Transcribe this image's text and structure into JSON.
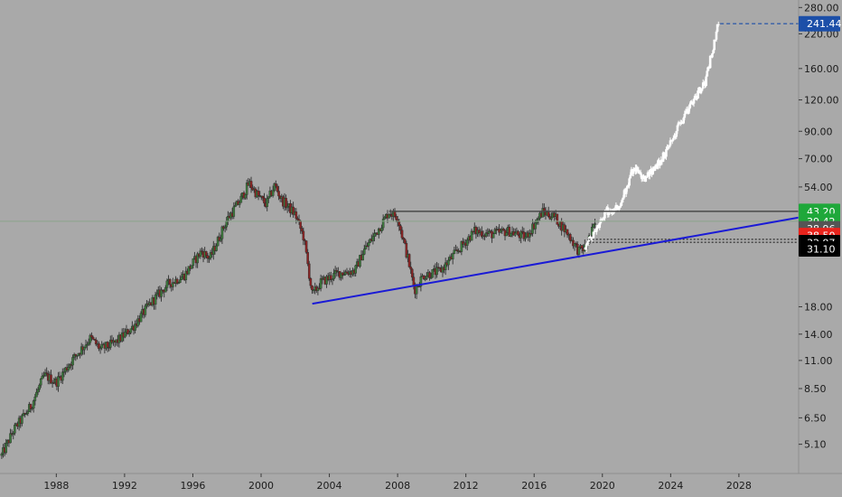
{
  "chart_data": {
    "type": "candlestick",
    "scale": "log",
    "colors": {
      "background": "#a9a9a9",
      "up": "#3d7a3d",
      "down": "#8b2424",
      "wick": "#3b3b3b",
      "projection": "#ffffff",
      "trendline": "#1a1ad6",
      "resistance": "#4a4a4a",
      "price_line": "#8ca58c"
    },
    "x_tick_labels": [
      "1988",
      "1992",
      "1996",
      "2000",
      "2004",
      "2008",
      "2012",
      "2016",
      "2020",
      "2024",
      "2028"
    ],
    "x_ticks": [
      1988,
      1992,
      1996,
      2000,
      2004,
      2008,
      2012,
      2016,
      2020,
      2024,
      2028
    ],
    "xlim": [
      1984.7,
      2031.5
    ],
    "y_tick_labels": [
      "280.00",
      "220.00",
      "160.00",
      "120.00",
      "90.00",
      "70.00",
      "54.00",
      "18.00",
      "14.00",
      "11.00",
      "8.50",
      "6.50",
      "5.10"
    ],
    "y_ticks": [
      280,
      220,
      160,
      120,
      90,
      70,
      54,
      18,
      14,
      11,
      8.5,
      6.5,
      5.1
    ],
    "ylim": [
      3.9,
      300
    ],
    "price_anchors": [
      [
        1984.8,
        4.6
      ],
      [
        1985.5,
        5.8
      ],
      [
        1986.5,
        7.2
      ],
      [
        1987.3,
        9.6
      ],
      [
        1988.0,
        9.0
      ],
      [
        1989.0,
        11.2
      ],
      [
        1990.0,
        13.5
      ],
      [
        1990.6,
        12.2
      ],
      [
        1991.5,
        13.0
      ],
      [
        1992.5,
        15.0
      ],
      [
        1993.5,
        18.5
      ],
      [
        1994.5,
        22.0
      ],
      [
        1995.5,
        24.0
      ],
      [
        1996.5,
        30.0
      ],
      [
        1997.0,
        28.0
      ],
      [
        1998.0,
        40.0
      ],
      [
        1998.8,
        48.0
      ],
      [
        1999.3,
        56.0
      ],
      [
        1999.8,
        50.0
      ],
      [
        2000.3,
        46.0
      ],
      [
        2000.8,
        55.0
      ],
      [
        2001.2,
        48.0
      ],
      [
        2002.0,
        42.0
      ],
      [
        2002.5,
        34.0
      ],
      [
        2003.0,
        20.0
      ],
      [
        2003.5,
        22.5
      ],
      [
        2004.5,
        24.5
      ],
      [
        2005.5,
        25.0
      ],
      [
        2006.0,
        30.0
      ],
      [
        2006.8,
        36.0
      ],
      [
        2007.5,
        43.0
      ],
      [
        2008.0,
        41.0
      ],
      [
        2008.6,
        28.0
      ],
      [
        2009.0,
        21.0
      ],
      [
        2009.5,
        24.0
      ],
      [
        2010.5,
        25.0
      ],
      [
        2011.5,
        30.0
      ],
      [
        2012.5,
        36.0
      ],
      [
        2013.5,
        35.0
      ],
      [
        2014.5,
        36.0
      ],
      [
        2015.5,
        34.0
      ],
      [
        2016.5,
        43.0
      ],
      [
        2017.2,
        41.0
      ],
      [
        2018.0,
        35.0
      ],
      [
        2018.6,
        30.0
      ],
      [
        2019.0,
        31.0
      ],
      [
        2019.6,
        38.9
      ]
    ],
    "projection_anchors": [
      [
        2019.0,
        31.0
      ],
      [
        2019.6,
        36.0
      ],
      [
        2020.2,
        43.0
      ],
      [
        2021.0,
        45.0
      ],
      [
        2021.8,
        64.0
      ],
      [
        2022.5,
        58.0
      ],
      [
        2023.5,
        70.0
      ],
      [
        2024.5,
        95.0
      ],
      [
        2025.3,
        120.0
      ],
      [
        2026.0,
        140.0
      ],
      [
        2026.8,
        241.0
      ]
    ],
    "trendline": {
      "x1": 2003.0,
      "y1": 18.5,
      "x2": 2031.5,
      "y2": 40.8
    },
    "resistance_line": {
      "x1": 2007.5,
      "y1": 43.2,
      "x2": 2031.5,
      "y2": 43.2
    },
    "price_line_value": 39.42,
    "projection_target": {
      "x": 2026.9,
      "y": 241.44
    },
    "support_lines": [
      {
        "x1": 2019.2,
        "y1": 33.4,
        "x2": 2031.5,
        "y2": 33.4
      },
      {
        "x1": 2019.2,
        "y1": 32.5,
        "x2": 2031.5,
        "y2": 32.5
      }
    ],
    "badges": [
      {
        "label": "241.44",
        "value": 241.44,
        "bg": "#1c4fa8",
        "fg": "#ffffff"
      },
      {
        "label": "43.20",
        "value": 43.2,
        "bg": "#1ea83a",
        "fg": "#ffffff"
      },
      {
        "label": "39.42",
        "value": 39.42,
        "bg": "#1ea83a",
        "fg": "#ffffff"
      },
      {
        "label": "38.96",
        "value": 36.8,
        "bg": "#555555",
        "fg": "#ffffff"
      },
      {
        "label": "38.50",
        "value": 34.6,
        "bg": "#e8231c",
        "fg": "#ffffff"
      },
      {
        "label": "32.97",
        "value": 32.4,
        "bg": "#000000",
        "fg": "#ffffff"
      },
      {
        "label": "31.10",
        "value": 30.6,
        "bg": "#000000",
        "fg": "#ffffff"
      }
    ]
  }
}
